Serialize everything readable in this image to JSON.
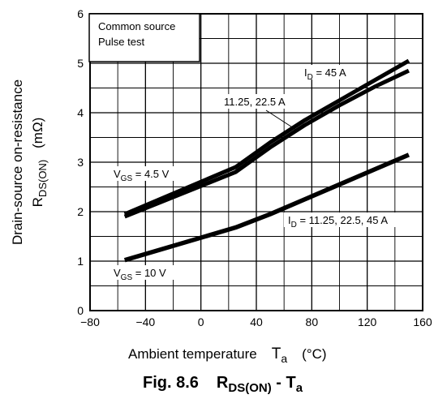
{
  "chart_data": {
    "type": "line",
    "xlim": [
      -80,
      160
    ],
    "ylim": [
      0,
      6
    ],
    "x_ticks": [
      "−80",
      "−40",
      "0",
      "40",
      "80",
      "120",
      "160"
    ],
    "y_ticks": [
      "0",
      "1",
      "2",
      "3",
      "4",
      "5",
      "6"
    ],
    "grid": true,
    "legend_box": [
      "Common source",
      "Pulse test"
    ],
    "xlabel_main": "Ambient temperature",
    "xlabel_sym": "T",
    "xlabel_sub": "a",
    "xlabel_unit": "(°C)",
    "ylabel_line1": "Drain-source on-resistance",
    "ylabel_sym": "R",
    "ylabel_sub": "DS(ON)",
    "ylabel_unit": "(mΩ)",
    "caption_prefix": "Fig. 8.6",
    "caption_sym": "R",
    "caption_sub": "DS(ON)",
    "caption_mid": " - T",
    "caption_sub2": "a",
    "series": [
      {
        "name": "ID = 45 A",
        "x": [
          -55,
          25,
          50,
          75,
          100,
          125,
          150
        ],
        "y": [
          1.95,
          2.9,
          3.4,
          3.85,
          4.25,
          4.65,
          5.05
        ]
      },
      {
        "name": "ID = 11.25, 22.5 A",
        "x": [
          -55,
          25,
          50,
          75,
          100,
          125,
          150
        ],
        "y": [
          1.9,
          2.8,
          3.3,
          3.75,
          4.15,
          4.52,
          4.85
        ]
      },
      {
        "name": "ID = 11.25, 22.5, 45 A",
        "x": [
          -55,
          25,
          50,
          75,
          100,
          125,
          150
        ],
        "y": [
          1.02,
          1.68,
          1.95,
          2.25,
          2.55,
          2.85,
          3.15
        ]
      }
    ],
    "annotations": {
      "id45_pre": "I",
      "id45_sub": "D",
      "id45_post": " = 45 A",
      "id11": "11.25, 22.5 A",
      "idall_pre": "I",
      "idall_sub": "D",
      "idall_post": " = 11.25, 22.5, 45 A",
      "vgs45_pre": "V",
      "vgs45_sub": "GS",
      "vgs45_post": " = 4.5 V",
      "vgs10_pre": "V",
      "vgs10_sub": "GS",
      "vgs10_post": " = 10 V"
    }
  }
}
